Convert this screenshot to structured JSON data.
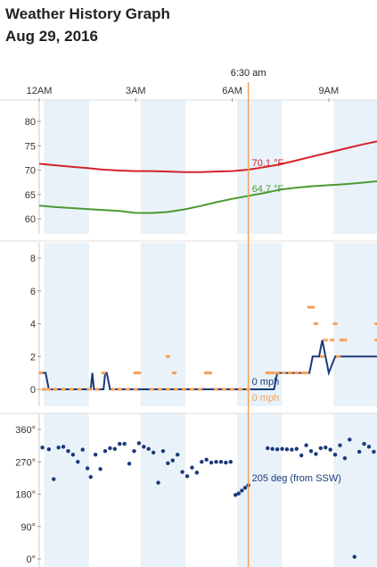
{
  "header": {
    "title": "Weather History Graph",
    "date": "Aug 29, 2016"
  },
  "cursor": {
    "label": "6:30 am",
    "hour": 6.5,
    "color": "#f5a05a"
  },
  "time_axis": {
    "ticks": [
      {
        "hour": 0,
        "label": "12AM"
      },
      {
        "hour": 3,
        "label": "3AM"
      },
      {
        "hour": 6,
        "label": "6AM"
      },
      {
        "hour": 9,
        "label": "9AM"
      }
    ],
    "range_hours": [
      0,
      10.5
    ],
    "shaded_bands": [
      [
        0.15,
        1.55
      ],
      [
        3.15,
        4.55
      ],
      [
        6.15,
        7.55
      ],
      [
        9.15,
        10.5
      ]
    ]
  },
  "colors": {
    "band": "#eaf2f9",
    "temperature": "#d2232a",
    "dewpoint": "#4b9b32",
    "wind": "#1a3a7a",
    "gust": "#f5a05a",
    "direction": "#1a3a7a",
    "axis": "#cccccc"
  },
  "chart_data": [
    {
      "type": "line",
      "name": "temperature-panel",
      "ylim": [
        60,
        80
      ],
      "yticks": [
        "60",
        "65",
        "70",
        "75",
        "80"
      ],
      "yticks_values": [
        60,
        65,
        70,
        75,
        80
      ],
      "series": [
        {
          "key": "temperature",
          "x": [
            0,
            0.5,
            1,
            1.5,
            2,
            2.5,
            3,
            3.5,
            4,
            4.5,
            5,
            5.5,
            6,
            6.5,
            7,
            7.5,
            8,
            8.5,
            9,
            9.5,
            10,
            10.5
          ],
          "y": [
            71.3,
            71.0,
            70.7,
            70.4,
            70.1,
            69.9,
            69.8,
            69.8,
            69.7,
            69.6,
            69.6,
            69.7,
            69.8,
            70.1,
            70.6,
            71.2,
            72.0,
            72.8,
            73.6,
            74.4,
            75.2,
            75.9
          ],
          "readout": "70.1 °F"
        },
        {
          "key": "dewpoint",
          "x": [
            0,
            0.5,
            1,
            1.5,
            2,
            2.5,
            3,
            3.5,
            4,
            4.5,
            5,
            5.5,
            6,
            6.5,
            7,
            7.5,
            8,
            8.5,
            9,
            9.5,
            10,
            10.5
          ],
          "y": [
            62.7,
            62.4,
            62.2,
            62.0,
            61.8,
            61.6,
            61.2,
            61.2,
            61.4,
            61.9,
            62.6,
            63.4,
            64.1,
            64.7,
            65.3,
            66.0,
            66.4,
            66.7,
            66.9,
            67.1,
            67.4,
            67.7
          ],
          "readout": "64.7 °F"
        }
      ]
    },
    {
      "type": "line",
      "name": "wind-panel",
      "ylim": [
        0,
        8
      ],
      "yticks": [
        "0",
        "2",
        "4",
        "6",
        "8"
      ],
      "yticks_values": [
        0,
        2,
        4,
        6,
        8
      ],
      "series": [
        {
          "key": "wind",
          "x": [
            0,
            0.1,
            0.2,
            0.3,
            1.6,
            1.65,
            1.7,
            1.75,
            2.0,
            2.05,
            2.1,
            2.2,
            7.2,
            7.3,
            7.4,
            8.4,
            8.5,
            8.7,
            8.8,
            9.0,
            9.2,
            9.3,
            9.5,
            10.5
          ],
          "y": [
            1,
            1,
            1,
            0,
            0,
            1,
            0,
            0,
            0,
            1,
            1,
            0,
            0,
            0,
            1,
            1,
            2,
            2,
            3,
            1,
            2,
            2,
            2,
            2
          ],
          "readout": "0 mph"
        },
        {
          "key": "gust",
          "style": "markers",
          "x": [
            0.05,
            0.15,
            0.3,
            0.5,
            0.75,
            1.0,
            1.25,
            1.55,
            1.8,
            2.3,
            2.5,
            2.75,
            3.0,
            3.1,
            3.5,
            3.75,
            4.0,
            4.25,
            4.5,
            4.75,
            5.0,
            5.2,
            5.3,
            5.5,
            5.75,
            6.0,
            6.25,
            6.5,
            2.0,
            3.0,
            4.0,
            4.2,
            5.2,
            5.3,
            7.1,
            7.2,
            7.25,
            7.4,
            7.6,
            7.8,
            8.0,
            8.2,
            8.3,
            8.4,
            8.5,
            8.6,
            8.8,
            8.9,
            9.1,
            9.2,
            9.3,
            9.4,
            9.5,
            10.5,
            10.5
          ],
          "y": [
            1,
            0,
            0,
            0,
            0,
            0,
            0,
            0,
            0,
            0,
            0,
            0,
            0,
            1,
            0,
            0,
            0,
            0,
            0,
            0,
            0,
            1,
            1,
            0,
            0,
            0,
            0,
            0,
            1,
            1,
            2,
            1,
            1,
            1,
            1,
            1,
            1,
            1,
            1,
            1,
            1,
            1,
            1,
            5,
            5,
            4,
            2,
            3,
            3,
            4,
            2,
            3,
            3,
            3,
            4
          ],
          "readout": "0 mph"
        }
      ]
    },
    {
      "type": "scatter",
      "name": "direction-panel",
      "ylim": [
        0,
        360
      ],
      "yticks": [
        "0°",
        "90°",
        "180°",
        "270°",
        "360°"
      ],
      "yticks_values": [
        0,
        90,
        180,
        270,
        360
      ],
      "series": [
        {
          "key": "direction",
          "x": [
            0.1,
            0.3,
            0.45,
            0.6,
            0.75,
            0.9,
            1.05,
            1.2,
            1.35,
            1.5,
            1.6,
            1.75,
            1.9,
            2.05,
            2.2,
            2.35,
            2.5,
            2.65,
            2.8,
            2.95,
            3.1,
            3.25,
            3.4,
            3.55,
            3.7,
            3.85,
            4.0,
            4.15,
            4.3,
            4.45,
            4.6,
            4.75,
            4.9,
            5.05,
            5.2,
            5.35,
            5.5,
            5.65,
            5.8,
            5.95,
            6.1,
            6.2,
            6.3,
            6.4,
            6.5,
            7.1,
            7.25,
            7.4,
            7.55,
            7.7,
            7.85,
            8.0,
            8.15,
            8.3,
            8.45,
            8.6,
            8.75,
            8.9,
            9.05,
            9.2,
            9.35,
            9.5,
            9.65,
            9.8,
            9.95,
            10.1,
            10.25,
            10.4
          ],
          "y": [
            310,
            305,
            222,
            310,
            312,
            300,
            290,
            270,
            304,
            252,
            228,
            290,
            250,
            300,
            308,
            306,
            320,
            320,
            265,
            300,
            322,
            312,
            306,
            296,
            212,
            300,
            266,
            274,
            290,
            242,
            230,
            254,
            240,
            270,
            276,
            268,
            270,
            270,
            268,
            270,
            178,
            182,
            190,
            198,
            205,
            308,
            306,
            305,
            306,
            305,
            304,
            306,
            288,
            316,
            300,
            292,
            308,
            310,
            304,
            290,
            316,
            280,
            332,
            6,
            298,
            320,
            312,
            298
          ],
          "readout": "205 deg (from SSW)"
        }
      ]
    }
  ]
}
